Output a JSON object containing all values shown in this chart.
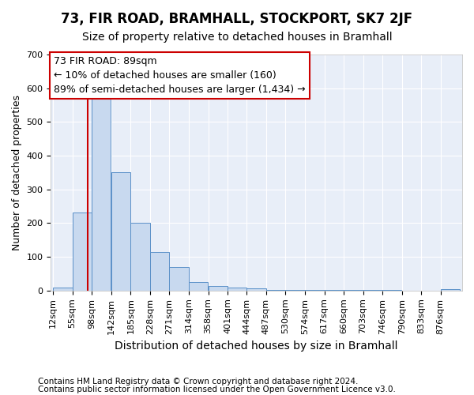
{
  "title1": "73, FIR ROAD, BRAMHALL, STOCKPORT, SK7 2JF",
  "title2": "Size of property relative to detached houses in Bramhall",
  "xlabel": "Distribution of detached houses by size in Bramhall",
  "ylabel": "Number of detached properties",
  "footer1": "Contains HM Land Registry data © Crown copyright and database right 2024.",
  "footer2": "Contains public sector information licensed under the Open Government Licence v3.0.",
  "bin_edges": [
    12,
    55,
    98,
    142,
    185,
    228,
    271,
    314,
    358,
    401,
    444,
    487,
    530,
    574,
    617,
    660,
    703,
    746,
    790,
    833,
    876
  ],
  "bar_heights": [
    8,
    232,
    578,
    350,
    202,
    115,
    70,
    25,
    13,
    8,
    6,
    3,
    2,
    1,
    1,
    1,
    1,
    1,
    0,
    0,
    5
  ],
  "bar_color": "#c8d9ef",
  "bar_edge_color": "#5a90c8",
  "property_line_x": 89,
  "property_line_color": "#cc0000",
  "annotation_line1": "73 FIR ROAD: 89sqm",
  "annotation_line2": "← 10% of detached houses are smaller (160)",
  "annotation_line3": "89% of semi-detached houses are larger (1,434) →",
  "annotation_box_color": "#ffffff",
  "annotation_box_edge": "#cc0000",
  "ylim": [
    0,
    700
  ],
  "yticks": [
    0,
    100,
    200,
    300,
    400,
    500,
    600,
    700
  ],
  "plot_bg_color": "#e8eef8",
  "fig_bg_color": "#ffffff",
  "grid_color": "#ffffff",
  "title1_fontsize": 12,
  "title2_fontsize": 10,
  "xlabel_fontsize": 10,
  "ylabel_fontsize": 9,
  "tick_fontsize": 8,
  "annot_fontsize": 9,
  "footer_fontsize": 7.5
}
